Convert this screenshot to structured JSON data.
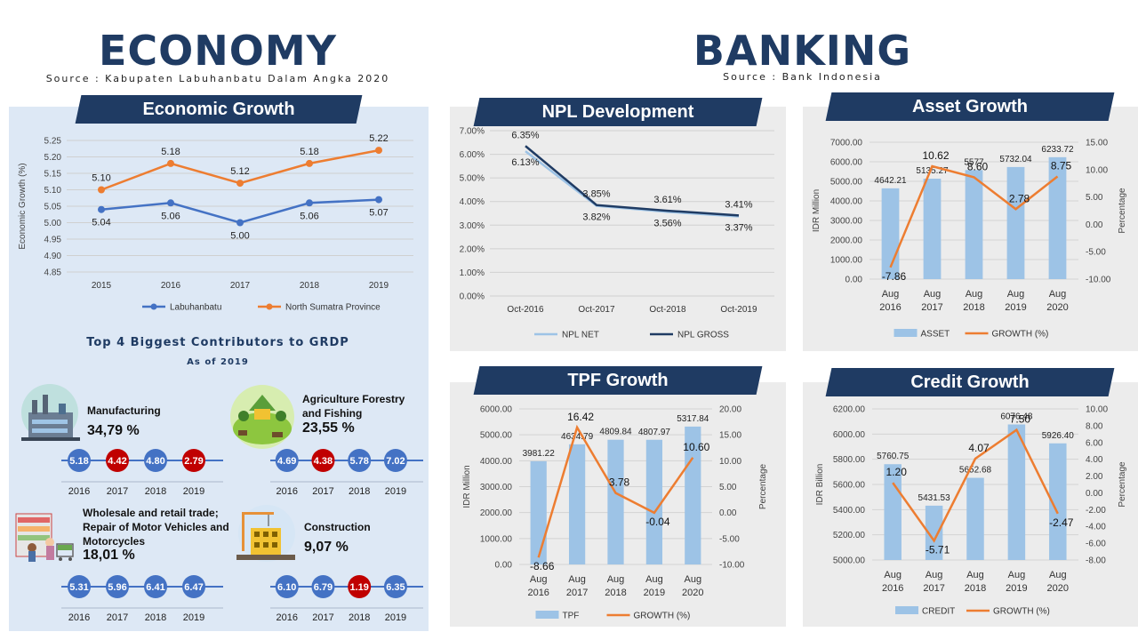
{
  "header": {
    "economy_title": "ECONOMY",
    "economy_source": "Source : Kabupaten Labuhanbatu Dalam Angka 2020",
    "banking_title": "BANKING",
    "banking_source": "Source : Bank Indonesia"
  },
  "colors": {
    "navy": "#1f3b63",
    "orange": "#ed7d31",
    "blue_line": "#4472c4",
    "bar": "#9dc3e6",
    "light_blue_line": "#9dc3e6",
    "red_dot": "#c00000",
    "blue_dot": "#4472c4"
  },
  "sections": {
    "economic_growth": "Economic Growth",
    "npl": "NPL Development",
    "asset": "Asset Growth",
    "tpf": "TPF Growth",
    "credit": "Credit Growth"
  },
  "contributors": {
    "title": "Top 4 Biggest Contributors to GRDP",
    "subtitle": "As of 2019",
    "years": [
      "2016",
      "2017",
      "2018",
      "2019"
    ],
    "sectors": [
      {
        "name": "Manufacturing",
        "pct": "34,79 %",
        "icon": "factory-icon",
        "values": [
          "5.18",
          "4.42",
          "4.80",
          "2.79"
        ],
        "highlight": [
          false,
          true,
          false,
          true
        ]
      },
      {
        "name": "Agriculture Forestry and Fishing",
        "pct": "23,55 %",
        "icon": "farm-icon",
        "values": [
          "4.69",
          "4.38",
          "5.78",
          "7.02"
        ],
        "highlight": [
          false,
          true,
          false,
          false
        ]
      },
      {
        "name": "Wholesale and retail trade; Repair of Motor Vehicles and Motorcycles",
        "pct": "18,01 %",
        "icon": "shop-icon",
        "values": [
          "5.31",
          "5.96",
          "6.41",
          "6.47"
        ],
        "highlight": [
          false,
          false,
          false,
          false
        ]
      },
      {
        "name": "Construction",
        "pct": "9,07 %",
        "icon": "construction-icon",
        "values": [
          "6.10",
          "6.79",
          "1.19",
          "6.35"
        ],
        "highlight": [
          false,
          false,
          true,
          false
        ]
      }
    ]
  },
  "chart_data": [
    {
      "id": "economic_growth",
      "type": "line",
      "title": "",
      "categories": [
        "2015",
        "2016",
        "2017",
        "2018",
        "2019"
      ],
      "series": [
        {
          "name": "Labuhanbatu",
          "values": [
            5.04,
            5.06,
            5.0,
            5.06,
            5.07
          ],
          "labels": [
            "5.04",
            "5.06",
            "5.00",
            "5.06",
            "5.07"
          ],
          "color": "#4472c4"
        },
        {
          "name": "North Sumatra Province",
          "values": [
            5.1,
            5.18,
            5.12,
            5.18,
            5.22
          ],
          "labels": [
            "5.10",
            "5.18",
            "5.12",
            "5.18",
            "5.22"
          ],
          "color": "#ed7d31"
        }
      ],
      "ylabel": "Economic Growth (%)",
      "ylim": [
        4.85,
        5.25
      ],
      "yticks": [
        "4.85",
        "4.90",
        "4.95",
        "5.00",
        "5.05",
        "5.10",
        "5.15",
        "5.20",
        "5.25"
      ],
      "grid": true,
      "legend": "bottom"
    },
    {
      "id": "npl",
      "type": "line",
      "categories": [
        "Oct-2016",
        "Oct-2017",
        "Oct-2018",
        "Oct-2019"
      ],
      "series": [
        {
          "name": "NPL NET",
          "values": [
            6.13,
            3.82,
            3.56,
            3.37
          ],
          "labels": [
            "6.13%",
            "3.82%",
            "3.56%",
            "3.37%"
          ],
          "color": "#9dc3e6"
        },
        {
          "name": "NPL GROSS",
          "values": [
            6.35,
            3.85,
            3.61,
            3.41
          ],
          "labels": [
            "6.35%",
            "3.85%",
            "3.61%",
            "3.41%"
          ],
          "color": "#1f3b63"
        }
      ],
      "ylim": [
        0,
        7
      ],
      "yticks": [
        "0.00%",
        "1.00%",
        "2.00%",
        "3.00%",
        "4.00%",
        "5.00%",
        "6.00%",
        "7.00%"
      ],
      "grid": true,
      "legend": "bottom"
    },
    {
      "id": "asset",
      "type": "bar",
      "categories": [
        "Aug 2016",
        "Aug 2017",
        "Aug 2018",
        "Aug 2019",
        "Aug 2020"
      ],
      "series": [
        {
          "name": "ASSET",
          "values": [
            4642.21,
            5135.27,
            5577,
            5732.04,
            6233.72
          ],
          "labels": [
            "4642.21",
            "5135.27",
            "5577",
            "5732.04",
            "6233.72"
          ],
          "axis": "left",
          "color": "#9dc3e6"
        },
        {
          "name": "GROWTH (%)",
          "values": [
            -7.86,
            10.62,
            8.6,
            2.78,
            8.75
          ],
          "labels": [
            "-7.86",
            "10.62",
            "8.60",
            "2.78",
            "8.75"
          ],
          "axis": "right",
          "color": "#ed7d31"
        }
      ],
      "ylabel": "IDR Million",
      "y2label": "Percentage",
      "ylim": [
        0,
        7000
      ],
      "y2lim": [
        -10,
        15
      ],
      "yticks": [
        "0.00",
        "1000.00",
        "2000.00",
        "3000.00",
        "4000.00",
        "5000.00",
        "6000.00",
        "7000.00"
      ],
      "y2ticks": [
        "-10.00",
        "-5.00",
        "0.00",
        "5.00",
        "10.00",
        "15.00"
      ],
      "grid": true,
      "legend": "bottom"
    },
    {
      "id": "tpf",
      "type": "bar",
      "categories": [
        "Aug 2016",
        "Aug 2017",
        "Aug 2018",
        "Aug 2019",
        "Aug 2020"
      ],
      "series": [
        {
          "name": "TPF",
          "values": [
            3981.22,
            4634.79,
            4809.84,
            4807.97,
            5317.84
          ],
          "labels": [
            "3981.22",
            "4634.79",
            "4809.84",
            "4807.97",
            "5317.84"
          ],
          "axis": "left",
          "color": "#9dc3e6"
        },
        {
          "name": "GROWTH (%)",
          "values": [
            -8.66,
            16.42,
            3.78,
            -0.04,
            10.6
          ],
          "labels": [
            "-8.66",
            "16.42",
            "3.78",
            "-0.04",
            "10.60"
          ],
          "axis": "right",
          "color": "#ed7d31"
        }
      ],
      "ylabel": "IDR Million",
      "y2label": "Percentage",
      "ylim": [
        0,
        6000
      ],
      "y2lim": [
        -10,
        20
      ],
      "yticks": [
        "0.00",
        "1000.00",
        "2000.00",
        "3000.00",
        "4000.00",
        "5000.00",
        "6000.00"
      ],
      "y2ticks": [
        "-10.00",
        "-5.00",
        "0.00",
        "5.00",
        "10.00",
        "15.00",
        "20.00"
      ],
      "grid": true,
      "legend": "bottom"
    },
    {
      "id": "credit",
      "type": "bar",
      "categories": [
        "Aug 2016",
        "Aug 2017",
        "Aug 2018",
        "Aug 2019",
        "Aug 2020"
      ],
      "series": [
        {
          "name": "CREDIT",
          "values": [
            5760.75,
            5431.53,
            5652.68,
            6076.48,
            5926.4
          ],
          "labels": [
            "5760.75",
            "5431.53",
            "5652.68",
            "6076.48",
            "5926.40"
          ],
          "axis": "left",
          "color": "#9dc3e6"
        },
        {
          "name": "GROWTH (%)",
          "values": [
            1.2,
            -5.71,
            4.07,
            7.5,
            -2.47
          ],
          "labels": [
            "1.20",
            "-5.71",
            "4.07",
            "7.50",
            "-2.47"
          ],
          "axis": "right",
          "color": "#ed7d31"
        }
      ],
      "ylabel": "IDR Billion",
      "y2label": "Percentage",
      "ylim": [
        5000,
        6200
      ],
      "y2lim": [
        -8,
        10
      ],
      "yticks": [
        "5000.00",
        "5200.00",
        "5400.00",
        "5600.00",
        "5800.00",
        "6000.00",
        "6200.00"
      ],
      "y2ticks": [
        "-8.00",
        "-6.00",
        "-4.00",
        "-2.00",
        "0.00",
        "2.00",
        "4.00",
        "6.00",
        "8.00",
        "10.00"
      ],
      "grid": true,
      "legend": "bottom"
    }
  ]
}
